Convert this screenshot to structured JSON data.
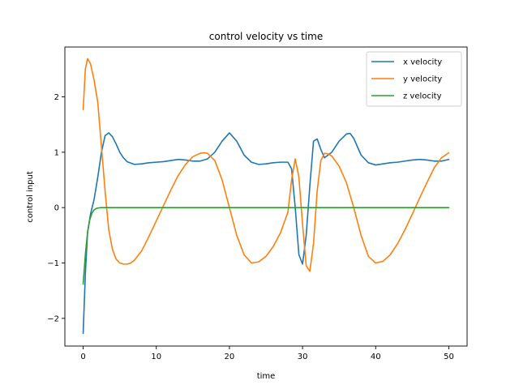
{
  "chart_data": {
    "type": "line",
    "title": "control velocity vs time",
    "xlabel": "time",
    "ylabel": "control input",
    "xlim": [
      -2.5,
      52.5
    ],
    "ylim": [
      -2.5,
      2.9
    ],
    "xticks": [
      0,
      10,
      20,
      30,
      40,
      50
    ],
    "yticks": [
      -2,
      -1,
      0,
      1,
      2
    ],
    "ytick_labels": [
      "−2",
      "−1",
      "0",
      "1",
      "2"
    ],
    "grid": false,
    "legend_position": "upper right",
    "series": [
      {
        "name": "x velocity",
        "color": "#1f77b4",
        "x": [
          0,
          0.3,
          0.6,
          1.0,
          1.5,
          2.0,
          2.5,
          3.0,
          3.5,
          4.0,
          4.5,
          5.0,
          5.5,
          6.0,
          7.0,
          8.0,
          9.0,
          10.0,
          11.0,
          12.0,
          13.0,
          14.0,
          15.0,
          16.0,
          17.0,
          18.0,
          19.0,
          20.0,
          21.0,
          22.0,
          23.0,
          24.0,
          25.0,
          26.0,
          27.0,
          28.0,
          28.5,
          29.0,
          29.5,
          30.0,
          30.5,
          31.0,
          31.5,
          32.0,
          32.5,
          33.0,
          33.5,
          34.0,
          35.0,
          36.0,
          36.5,
          37.0,
          38.0,
          39.0,
          40.0,
          41.0,
          42.0,
          43.0,
          44.0,
          45.0,
          46.0,
          47.0,
          48.0,
          49.0,
          50.0
        ],
        "y": [
          -2.27,
          -1.2,
          -0.45,
          -0.12,
          0.15,
          0.55,
          1.0,
          1.3,
          1.35,
          1.28,
          1.15,
          1.0,
          0.9,
          0.83,
          0.78,
          0.79,
          0.81,
          0.82,
          0.83,
          0.85,
          0.87,
          0.86,
          0.84,
          0.84,
          0.88,
          1.0,
          1.2,
          1.35,
          1.2,
          0.95,
          0.82,
          0.78,
          0.79,
          0.81,
          0.82,
          0.82,
          0.7,
          0.0,
          -0.85,
          -1.02,
          -0.5,
          0.4,
          1.2,
          1.24,
          1.05,
          0.9,
          0.95,
          1.0,
          1.2,
          1.33,
          1.34,
          1.25,
          0.95,
          0.81,
          0.77,
          0.79,
          0.81,
          0.82,
          0.84,
          0.86,
          0.87,
          0.86,
          0.84,
          0.84,
          0.87
        ]
      },
      {
        "name": "y velocity",
        "color": "#ff7f0e",
        "x": [
          0,
          0.3,
          0.6,
          1.0,
          1.5,
          2.0,
          2.5,
          3.0,
          3.5,
          4.0,
          4.5,
          5.0,
          5.5,
          6.0,
          6.5,
          7.0,
          8.0,
          9.0,
          10.0,
          11.0,
          12.0,
          13.0,
          14.0,
          15.0,
          16.0,
          16.5,
          17.0,
          18.0,
          19.0,
          20.0,
          21.0,
          22.0,
          23.0,
          24.0,
          25.0,
          26.0,
          27.0,
          28.0,
          28.5,
          29.0,
          29.5,
          30.0,
          30.5,
          31.0,
          31.5,
          32.0,
          32.5,
          33.0,
          33.5,
          34.0,
          35.0,
          36.0,
          37.0,
          38.0,
          39.0,
          40.0,
          41.0,
          42.0,
          43.0,
          44.0,
          45.0,
          46.0,
          47.0,
          48.0,
          49.0,
          50.0
        ],
        "y": [
          1.77,
          2.5,
          2.69,
          2.6,
          2.3,
          1.9,
          1.1,
          0.3,
          -0.4,
          -0.75,
          -0.93,
          -1.0,
          -1.02,
          -1.02,
          -1.0,
          -0.95,
          -0.78,
          -0.52,
          -0.24,
          0.04,
          0.32,
          0.58,
          0.78,
          0.92,
          0.98,
          0.99,
          0.98,
          0.85,
          0.5,
          0.0,
          -0.5,
          -0.85,
          -1.0,
          -0.98,
          -0.88,
          -0.7,
          -0.45,
          -0.08,
          0.5,
          0.88,
          0.55,
          -0.3,
          -1.05,
          -1.15,
          -0.65,
          0.3,
          0.85,
          0.98,
          0.97,
          0.93,
          0.75,
          0.45,
          0.0,
          -0.5,
          -0.88,
          -1.0,
          -0.97,
          -0.85,
          -0.65,
          -0.4,
          -0.12,
          0.17,
          0.45,
          0.72,
          0.9,
          0.99
        ]
      },
      {
        "name": "z velocity",
        "color": "#2ca02c",
        "x": [
          0,
          0.3,
          0.6,
          0.9,
          1.2,
          1.5,
          1.8,
          2.1,
          2.5,
          3.0,
          3.5,
          4.0,
          10.0,
          20.0,
          30.0,
          40.0,
          50.0
        ],
        "y": [
          -1.38,
          -0.85,
          -0.45,
          -0.22,
          -0.1,
          -0.04,
          -0.015,
          -0.005,
          0.0,
          0.0,
          0.0,
          0.0,
          0.0,
          0.0,
          0.0,
          0.0,
          0.0
        ]
      }
    ]
  }
}
